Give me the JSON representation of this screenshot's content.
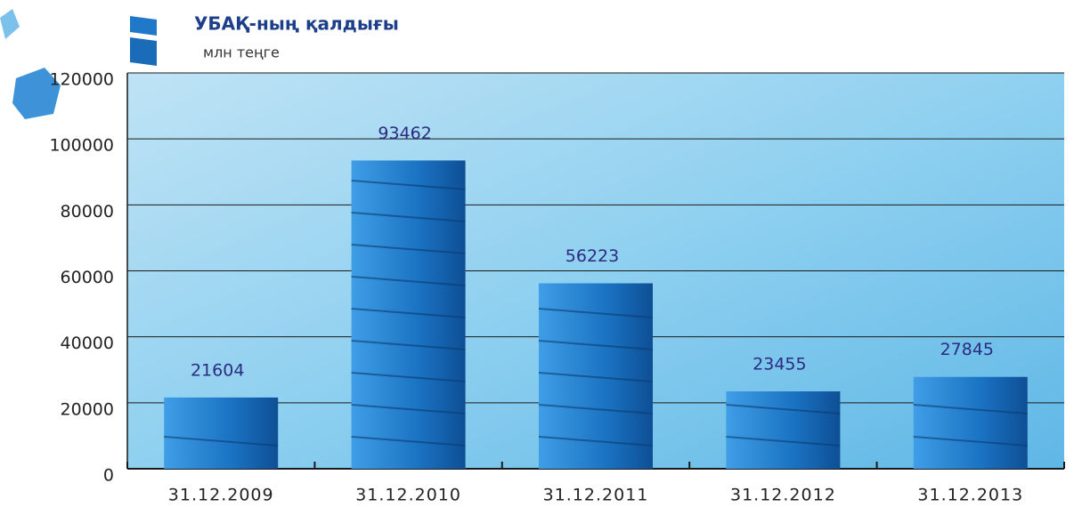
{
  "chart_data": {
    "type": "bar",
    "title": "УБАҚ-ның қалдығы",
    "subtitle": "млн теңге",
    "categories": [
      "31.12.2009",
      "31.12.2010",
      "31.12.2011",
      "31.12.2012",
      "31.12.2013"
    ],
    "values": [
      21604,
      93462,
      56223,
      23455,
      27845
    ],
    "color": "#1f78c8",
    "ylim": [
      0,
      120000
    ],
    "yticks": [
      0,
      20000,
      40000,
      60000,
      80000,
      100000,
      120000
    ],
    "grid": true
  }
}
